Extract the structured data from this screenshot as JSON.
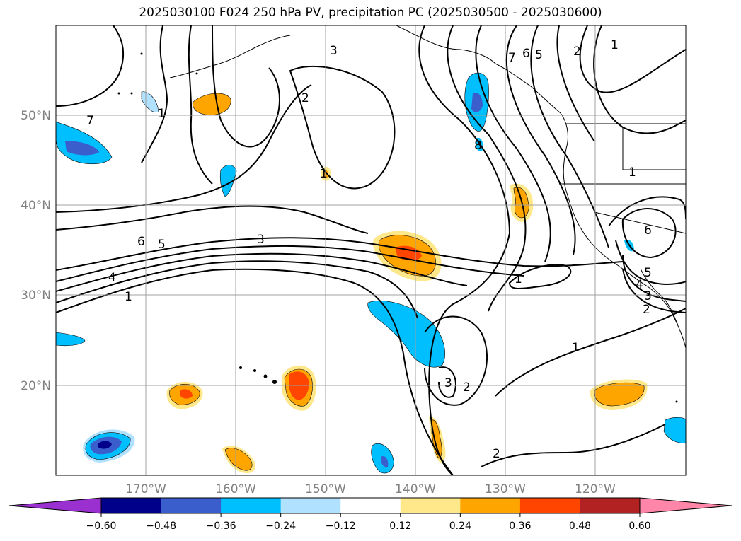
{
  "title": "2025030100 F024 250 hPa PV, precipitation PC (2025030500 - 2025030600)",
  "map": {
    "lat_ticks": [
      "50°N",
      "40°N",
      "30°N",
      "20°N"
    ],
    "lon_ticks": [
      "170°W",
      "160°W",
      "150°W",
      "140°W",
      "130°W",
      "120°W"
    ],
    "gridlines": true,
    "extent": {
      "lon": [
        -180,
        -110
      ],
      "lat": [
        10,
        60
      ]
    }
  },
  "contour_labels": [
    "7",
    "3",
    "2",
    "1",
    "6",
    "5",
    "4",
    "3",
    "1",
    "7",
    "6",
    "5",
    "2",
    "1",
    "8",
    "1",
    "6",
    "5",
    "4",
    "3",
    "2",
    "1",
    "3",
    "2",
    "2",
    "1",
    "1"
  ],
  "colorbar": {
    "ticks": [
      "−0.60",
      "−0.48",
      "−0.36",
      "−0.24",
      "−0.12",
      "0.12",
      "0.24",
      "0.36",
      "0.48",
      "0.60"
    ],
    "colors": [
      "#9b30d0",
      "#00008b",
      "#3a5fcd",
      "#00bfff",
      "#b0e2ff",
      "#ffffff",
      "#ffe88a",
      "#ffa500",
      "#ff4500",
      "#b22222",
      "#ff86a8"
    ],
    "extend": "both"
  }
}
